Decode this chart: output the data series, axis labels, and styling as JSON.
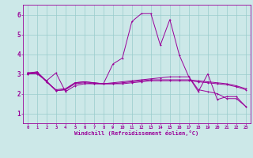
{
  "background_color": "#cce8e8",
  "grid_color": "#99cccc",
  "line_color": "#990099",
  "xlim": [
    -0.5,
    23.5
  ],
  "ylim": [
    0.5,
    6.5
  ],
  "xticks": [
    0,
    1,
    2,
    3,
    4,
    5,
    6,
    7,
    8,
    9,
    10,
    11,
    12,
    13,
    14,
    15,
    16,
    17,
    18,
    19,
    20,
    21,
    22,
    23
  ],
  "yticks": [
    1,
    2,
    3,
    4,
    5,
    6
  ],
  "xlabel": "Windchill (Refroidissement éolien,°C)",
  "series": [
    {
      "x": [
        0,
        1,
        2,
        3,
        4,
        5,
        6,
        7,
        8,
        9,
        10,
        11,
        12,
        13,
        14,
        15,
        16,
        17,
        18,
        19,
        20,
        21,
        22,
        23
      ],
      "y": [
        3.0,
        3.1,
        2.65,
        3.05,
        2.1,
        2.4,
        2.5,
        2.5,
        2.5,
        3.5,
        3.8,
        5.65,
        6.05,
        6.05,
        4.45,
        5.75,
        3.95,
        2.85,
        2.1,
        3.0,
        1.7,
        1.85,
        1.85,
        1.35
      ]
    },
    {
      "x": [
        0,
        1,
        2,
        3,
        4,
        5,
        6,
        7,
        8,
        9,
        10,
        11,
        12,
        13,
        14,
        15,
        16,
        17,
        18,
        19,
        20,
        21,
        22,
        23
      ],
      "y": [
        3.0,
        3.0,
        2.65,
        2.15,
        2.2,
        2.55,
        2.6,
        2.55,
        2.5,
        2.55,
        2.6,
        2.65,
        2.7,
        2.75,
        2.8,
        2.85,
        2.85,
        2.85,
        2.2,
        2.1,
        2.0,
        1.75,
        1.75,
        1.35
      ]
    },
    {
      "x": [
        0,
        1,
        2,
        3,
        4,
        5,
        6,
        7,
        8,
        9,
        10,
        11,
        12,
        13,
        14,
        15,
        16,
        17,
        18,
        19,
        20,
        21,
        22,
        23
      ],
      "y": [
        3.05,
        3.1,
        2.6,
        2.15,
        2.2,
        2.5,
        2.55,
        2.5,
        2.5,
        2.5,
        2.55,
        2.6,
        2.65,
        2.7,
        2.7,
        2.7,
        2.7,
        2.7,
        2.65,
        2.6,
        2.55,
        2.5,
        2.4,
        2.25
      ]
    },
    {
      "x": [
        0,
        1,
        2,
        3,
        4,
        5,
        6,
        7,
        8,
        9,
        10,
        11,
        12,
        13,
        14,
        15,
        16,
        17,
        18,
        19,
        20,
        21,
        22,
        23
      ],
      "y": [
        3.05,
        3.05,
        2.6,
        2.2,
        2.25,
        2.55,
        2.6,
        2.55,
        2.5,
        2.5,
        2.5,
        2.55,
        2.6,
        2.65,
        2.65,
        2.65,
        2.65,
        2.65,
        2.6,
        2.55,
        2.5,
        2.45,
        2.35,
        2.2
      ]
    }
  ]
}
